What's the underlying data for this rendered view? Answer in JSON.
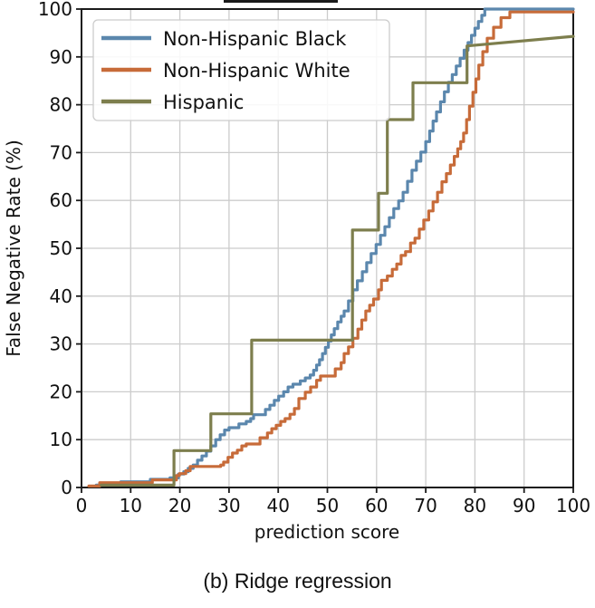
{
  "figure": {
    "caption": "(b) Ridge regression"
  },
  "chart_data": {
    "type": "line",
    "subtype": "step-function (false negative rate curves)",
    "title": "",
    "xlabel": "prediction score",
    "ylabel": "False Negative Rate (%)",
    "xlim": [
      0,
      100
    ],
    "ylim": [
      0,
      100
    ],
    "xticks": [
      0,
      10,
      20,
      30,
      40,
      50,
      60,
      70,
      80,
      90,
      100
    ],
    "yticks": [
      0,
      10,
      20,
      30,
      40,
      50,
      60,
      70,
      80,
      90,
      100
    ],
    "grid": true,
    "grid_color": "#cccccc",
    "spine_color": "#1a1a1a",
    "legend_position": "upper left",
    "series": [
      {
        "name": "Non-Hispanic Black",
        "color": "#5B87AD",
        "interpolation": "step-after",
        "points": [
          [
            3,
            0.5
          ],
          [
            8,
            1.2
          ],
          [
            14,
            1.7
          ],
          [
            18,
            2
          ],
          [
            19.7,
            2.8
          ],
          [
            20.8,
            3.3
          ],
          [
            21.7,
            4
          ],
          [
            22.7,
            4.7
          ],
          [
            23.6,
            5.7
          ],
          [
            24.5,
            6.6
          ],
          [
            25.4,
            7.6
          ],
          [
            26.3,
            8.7
          ],
          [
            27.3,
            10
          ],
          [
            28.2,
            11
          ],
          [
            29.1,
            12
          ],
          [
            30,
            12.5
          ],
          [
            32,
            13.3
          ],
          [
            33.5,
            13.8
          ],
          [
            34.4,
            14.4
          ],
          [
            35,
            15.2
          ],
          [
            37.4,
            16.3
          ],
          [
            38.3,
            17.2
          ],
          [
            39.2,
            18.2
          ],
          [
            40.1,
            19.1
          ],
          [
            41.1,
            20
          ],
          [
            42,
            21
          ],
          [
            43,
            21.6
          ],
          [
            44.5,
            22.3
          ],
          [
            45.5,
            22.9
          ],
          [
            46.5,
            23.5
          ],
          [
            47.2,
            24.5
          ],
          [
            47.8,
            25.6
          ],
          [
            48.4,
            26.7
          ],
          [
            49,
            28
          ],
          [
            49.6,
            29.3
          ],
          [
            50.2,
            30.6
          ],
          [
            50.8,
            31.9
          ],
          [
            51.4,
            33.2
          ],
          [
            52.1,
            34.6
          ],
          [
            52.8,
            35.8
          ],
          [
            53.4,
            36.9
          ],
          [
            54.3,
            39
          ],
          [
            55.2,
            41.3
          ],
          [
            56.1,
            43.2
          ],
          [
            57.1,
            45.1
          ],
          [
            58,
            47
          ],
          [
            58.9,
            48.9
          ],
          [
            59.9,
            50.8
          ],
          [
            60.8,
            52.7
          ],
          [
            61.7,
            54.5
          ],
          [
            62.6,
            56.4
          ],
          [
            63.5,
            58.3
          ],
          [
            64.5,
            59.9
          ],
          [
            65.4,
            61.7
          ],
          [
            66.3,
            64
          ],
          [
            67.2,
            66.3
          ],
          [
            68.1,
            68.2
          ],
          [
            69,
            70.1
          ],
          [
            70,
            72.3
          ],
          [
            70.8,
            74.5
          ],
          [
            71.5,
            76.6
          ],
          [
            72.2,
            78.5
          ],
          [
            73,
            80.6
          ],
          [
            73.8,
            82.7
          ],
          [
            74.6,
            84.7
          ],
          [
            75.4,
            86.3
          ],
          [
            76.2,
            88.1
          ],
          [
            77,
            89.7
          ],
          [
            77.8,
            91.4
          ],
          [
            78.6,
            93
          ],
          [
            79.3,
            94.5
          ],
          [
            80,
            96
          ],
          [
            80.7,
            97.4
          ],
          [
            81.4,
            98.7
          ],
          [
            82,
            100
          ],
          [
            100,
            100
          ]
        ]
      },
      {
        "name": "Non-Hispanic White",
        "color": "#C76B39",
        "interpolation": "step-after",
        "points": [
          [
            1.5,
            0.3
          ],
          [
            3.7,
            1
          ],
          [
            14.4,
            1.6
          ],
          [
            19.3,
            2.5
          ],
          [
            19.9,
            2.9
          ],
          [
            21.2,
            3.5
          ],
          [
            22.1,
            4.4
          ],
          [
            28.3,
            4.7
          ],
          [
            28.9,
            5.3
          ],
          [
            29.8,
            6.3
          ],
          [
            30.7,
            7.2
          ],
          [
            31.7,
            7.8
          ],
          [
            32.6,
            8.7
          ],
          [
            33.5,
            9.1
          ],
          [
            36.3,
            10.4
          ],
          [
            37.8,
            11.4
          ],
          [
            38.7,
            12.3
          ],
          [
            39.6,
            13
          ],
          [
            40.5,
            13.8
          ],
          [
            41.4,
            14.4
          ],
          [
            42.4,
            15.3
          ],
          [
            43.3,
            16.5
          ],
          [
            44.2,
            18.6
          ],
          [
            45.5,
            19.9
          ],
          [
            46.6,
            21
          ],
          [
            47.8,
            22.4
          ],
          [
            48.6,
            23.3
          ],
          [
            51.6,
            24.8
          ],
          [
            52.8,
            26.1
          ],
          [
            53.4,
            28
          ],
          [
            54.3,
            29.4
          ],
          [
            55.2,
            31.2
          ],
          [
            56.2,
            33.1
          ],
          [
            57,
            35
          ],
          [
            57.8,
            36.9
          ],
          [
            58.6,
            38.1
          ],
          [
            59.4,
            39.4
          ],
          [
            60.4,
            41.3
          ],
          [
            61,
            43.3
          ],
          [
            62.2,
            44.2
          ],
          [
            63.2,
            45.6
          ],
          [
            64.1,
            46.7
          ],
          [
            65,
            48.5
          ],
          [
            65.9,
            49.3
          ],
          [
            66.9,
            51.1
          ],
          [
            67.8,
            52.1
          ],
          [
            68.7,
            54
          ],
          [
            69.6,
            55.9
          ],
          [
            70.6,
            57.8
          ],
          [
            71.5,
            59.7
          ],
          [
            72.4,
            61.7
          ],
          [
            73.3,
            63.9
          ],
          [
            74.2,
            65.6
          ],
          [
            75,
            67.4
          ],
          [
            75.8,
            69.2
          ],
          [
            76.5,
            70.8
          ],
          [
            77.1,
            72.3
          ],
          [
            77.7,
            74.1
          ],
          [
            78.3,
            76.9
          ],
          [
            78.9,
            79.7
          ],
          [
            79.6,
            82.6
          ],
          [
            80.2,
            85.4
          ],
          [
            80.8,
            88.3
          ],
          [
            81.6,
            91.1
          ],
          [
            82.5,
            93.9
          ],
          [
            83.8,
            96.2
          ],
          [
            85.3,
            98.2
          ],
          [
            87.1,
            99.4
          ],
          [
            100,
            99.4
          ]
        ]
      },
      {
        "name": "Hispanic",
        "color": "#7D7E4D",
        "interpolation": "linear",
        "points": [
          [
            4,
            0.5
          ],
          [
            18.8,
            0.5
          ],
          [
            18.8,
            7.7
          ],
          [
            26.3,
            7.7
          ],
          [
            26.3,
            15.4
          ],
          [
            34.6,
            15.4
          ],
          [
            34.6,
            30.8
          ],
          [
            55.1,
            30.8
          ],
          [
            55.1,
            53.8
          ],
          [
            60.4,
            53.8
          ],
          [
            60.4,
            61.5
          ],
          [
            62.2,
            61.5
          ],
          [
            62.2,
            76.9
          ],
          [
            67.4,
            76.9
          ],
          [
            67.4,
            84.6
          ],
          [
            78.4,
            84.6
          ],
          [
            78.4,
            92.3
          ],
          [
            100,
            94.3
          ]
        ]
      }
    ]
  }
}
